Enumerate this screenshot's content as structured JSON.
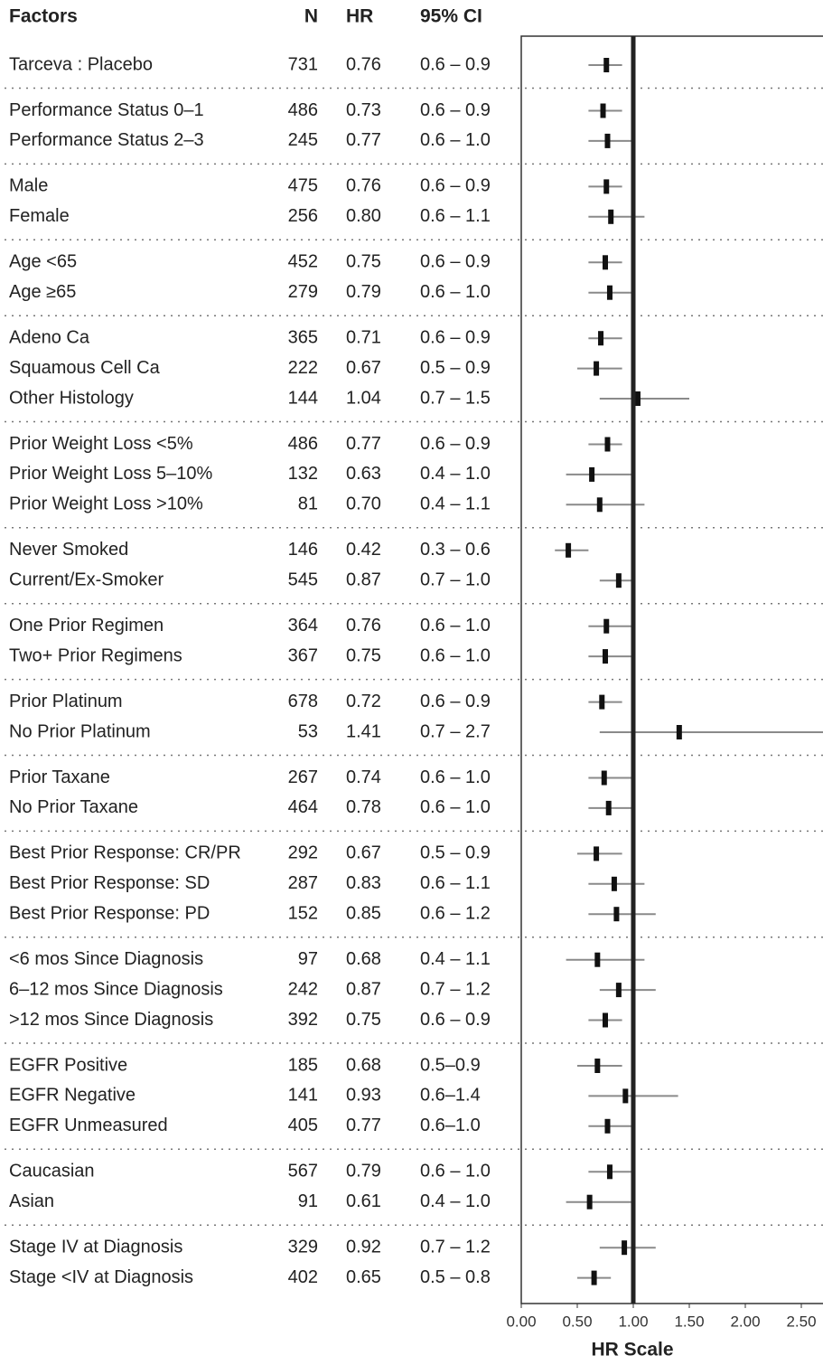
{
  "chart_data": {
    "type": "forest",
    "columns": [
      "Factors",
      "N",
      "HR",
      "95% CI"
    ],
    "x_label": "HR Scale",
    "xlim": [
      0,
      2.7
    ],
    "xticks": [
      {
        "value": 0,
        "label": "0.00"
      },
      {
        "value": 0.5,
        "label": "0.50"
      },
      {
        "value": 1,
        "label": "1.00"
      },
      {
        "value": 1.5,
        "label": "1.50"
      },
      {
        "value": 2,
        "label": "2.00"
      },
      {
        "value": 2.5,
        "label": "2.50"
      }
    ],
    "reference_line": 1,
    "groups": [
      {
        "rows": [
          {
            "factor": "Tarceva : Placebo",
            "n": 731,
            "hr": 0.76,
            "ci_low": 0.6,
            "ci_high": 0.9,
            "ci": "0.6 – 0.9"
          }
        ]
      },
      {
        "rows": [
          {
            "factor": "Performance Status 0–1",
            "n": 486,
            "hr": 0.73,
            "ci_low": 0.6,
            "ci_high": 0.9,
            "ci": "0.6 – 0.9"
          },
          {
            "factor": "Performance Status 2–3",
            "n": 245,
            "hr": 0.77,
            "ci_low": 0.6,
            "ci_high": 1.0,
            "ci": "0.6 – 1.0"
          }
        ]
      },
      {
        "rows": [
          {
            "factor": "Male",
            "n": 475,
            "hr": 0.76,
            "ci_low": 0.6,
            "ci_high": 0.9,
            "ci": "0.6 – 0.9"
          },
          {
            "factor": "Female",
            "n": 256,
            "hr": 0.8,
            "hr_label": "0.80",
            "ci_low": 0.6,
            "ci_high": 1.1,
            "ci": "0.6 – 1.1"
          }
        ]
      },
      {
        "rows": [
          {
            "factor": "Age <65",
            "n": 452,
            "hr": 0.75,
            "ci_low": 0.6,
            "ci_high": 0.9,
            "ci": "0.6 – 0.9"
          },
          {
            "factor": "Age ≥65",
            "n": 279,
            "hr": 0.79,
            "ci_low": 0.6,
            "ci_high": 1.0,
            "ci": "0.6 – 1.0"
          }
        ]
      },
      {
        "rows": [
          {
            "factor": "Adeno Ca",
            "n": 365,
            "hr": 0.71,
            "ci_low": 0.6,
            "ci_high": 0.9,
            "ci": "0.6 – 0.9"
          },
          {
            "factor": "Squamous Cell Ca",
            "n": 222,
            "hr": 0.67,
            "ci_low": 0.5,
            "ci_high": 0.9,
            "ci": "0.5 – 0.9"
          },
          {
            "factor": "Other Histology",
            "n": 144,
            "hr": 1.04,
            "ci_low": 0.7,
            "ci_high": 1.5,
            "ci": "0.7 – 1.5"
          }
        ]
      },
      {
        "rows": [
          {
            "factor": "Prior Weight Loss <5%",
            "n": 486,
            "hr": 0.77,
            "ci_low": 0.6,
            "ci_high": 0.9,
            "ci": "0.6 – 0.9"
          },
          {
            "factor": "Prior Weight Loss 5–10%",
            "n": 132,
            "hr": 0.63,
            "ci_low": 0.4,
            "ci_high": 1.0,
            "ci": "0.4 – 1.0"
          },
          {
            "factor": "Prior Weight Loss >10%",
            "n": 81,
            "hr": 0.7,
            "hr_label": "0.70",
            "ci_low": 0.4,
            "ci_high": 1.1,
            "ci": "0.4 – 1.1"
          }
        ]
      },
      {
        "rows": [
          {
            "factor": "Never Smoked",
            "n": 146,
            "hr": 0.42,
            "ci_low": 0.3,
            "ci_high": 0.6,
            "ci": "0.3 – 0.6"
          },
          {
            "factor": "Current/Ex-Smoker",
            "n": 545,
            "hr": 0.87,
            "ci_low": 0.7,
            "ci_high": 1.0,
            "ci": "0.7 – 1.0"
          }
        ]
      },
      {
        "rows": [
          {
            "factor": "One Prior Regimen",
            "n": 364,
            "hr": 0.76,
            "ci_low": 0.6,
            "ci_high": 1.0,
            "ci": "0.6 – 1.0"
          },
          {
            "factor": "Two+ Prior Regimens",
            "n": 367,
            "hr": 0.75,
            "ci_low": 0.6,
            "ci_high": 1.0,
            "ci": "0.6 – 1.0"
          }
        ]
      },
      {
        "rows": [
          {
            "factor": "Prior Platinum",
            "n": 678,
            "hr": 0.72,
            "ci_low": 0.6,
            "ci_high": 0.9,
            "ci": "0.6 – 0.9"
          },
          {
            "factor": "No Prior Platinum",
            "n": 53,
            "hr": 1.41,
            "ci_low": 0.7,
            "ci_high": 2.7,
            "ci": "0.7 – 2.7"
          }
        ]
      },
      {
        "rows": [
          {
            "factor": "Prior Taxane",
            "n": 267,
            "hr": 0.74,
            "ci_low": 0.6,
            "ci_high": 1.0,
            "ci": "0.6 – 1.0"
          },
          {
            "factor": "No Prior Taxane",
            "n": 464,
            "hr": 0.78,
            "ci_low": 0.6,
            "ci_high": 1.0,
            "ci": "0.6 – 1.0"
          }
        ]
      },
      {
        "rows": [
          {
            "factor": "Best Prior Response: CR/PR",
            "n": 292,
            "hr": 0.67,
            "ci_low": 0.5,
            "ci_high": 0.9,
            "ci": "0.5 – 0.9"
          },
          {
            "factor": "Best Prior Response: SD",
            "n": 287,
            "hr": 0.83,
            "ci_low": 0.6,
            "ci_high": 1.1,
            "ci": "0.6 – 1.1"
          },
          {
            "factor": "Best Prior Response: PD",
            "n": 152,
            "hr": 0.85,
            "ci_low": 0.6,
            "ci_high": 1.2,
            "ci": "0.6 – 1.2"
          }
        ]
      },
      {
        "rows": [
          {
            "factor": "<6 mos Since Diagnosis",
            "n": 97,
            "hr": 0.68,
            "ci_low": 0.4,
            "ci_high": 1.1,
            "ci": "0.4 – 1.1"
          },
          {
            "factor": "6–12 mos Since Diagnosis",
            "n": 242,
            "hr": 0.87,
            "ci_low": 0.7,
            "ci_high": 1.2,
            "ci": "0.7 – 1.2"
          },
          {
            "factor": ">12 mos Since Diagnosis",
            "n": 392,
            "hr": 0.75,
            "ci_low": 0.6,
            "ci_high": 0.9,
            "ci": "0.6 – 0.9"
          }
        ]
      },
      {
        "rows": [
          {
            "factor": "EGFR Positive",
            "n": 185,
            "hr": 0.68,
            "ci_low": 0.5,
            "ci_high": 0.9,
            "ci": "0.5–0.9"
          },
          {
            "factor": "EGFR Negative",
            "n": 141,
            "hr": 0.93,
            "ci_low": 0.6,
            "ci_high": 1.4,
            "ci": "0.6–1.4"
          },
          {
            "factor": "EGFR Unmeasured",
            "n": 405,
            "hr": 0.77,
            "ci_low": 0.6,
            "ci_high": 1.0,
            "ci": "0.6–1.0"
          }
        ]
      },
      {
        "rows": [
          {
            "factor": "Caucasian",
            "n": 567,
            "hr": 0.79,
            "ci_low": 0.6,
            "ci_high": 1.0,
            "ci": "0.6 – 1.0"
          },
          {
            "factor": "Asian",
            "n": 91,
            "hr": 0.61,
            "ci_low": 0.4,
            "ci_high": 1.0,
            "ci": "0.4 – 1.0"
          }
        ]
      },
      {
        "rows": [
          {
            "factor": "Stage IV at Diagnosis",
            "n": 329,
            "hr": 0.92,
            "ci_low": 0.7,
            "ci_high": 1.2,
            "ci": "0.7 – 1.2"
          },
          {
            "factor": "Stage <IV at Diagnosis",
            "n": 402,
            "hr": 0.65,
            "ci_low": 0.5,
            "ci_high": 0.8,
            "ci": "0.5 – 0.8"
          }
        ]
      }
    ]
  }
}
